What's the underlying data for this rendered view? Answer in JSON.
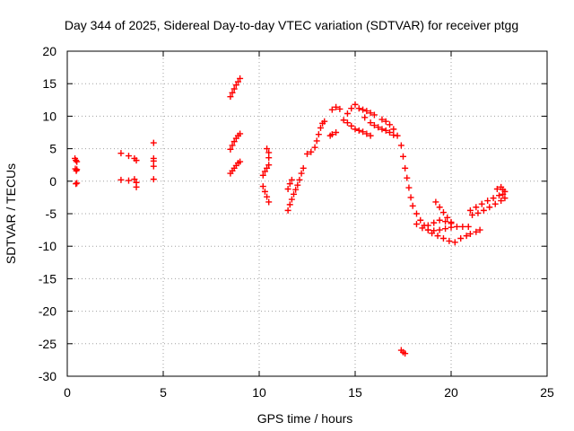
{
  "chart_data": {
    "type": "scatter",
    "title": "Day 344 of 2025, Sidereal Day-to-day VTEC variation (SDTVAR) for receiver ptgg",
    "xlabel": "GPS time / hours",
    "ylabel": "SDTVAR / TECUs",
    "xlim": [
      0,
      25
    ],
    "ylim": [
      -30,
      20
    ],
    "x_ticks": [
      0,
      5,
      10,
      15,
      20,
      25
    ],
    "y_ticks": [
      20,
      15,
      10,
      5,
      0,
      -5,
      -10,
      -15,
      -20,
      -25,
      -30
    ],
    "x_tick_labels": [
      "0",
      "5",
      "10",
      "15",
      "20",
      "25"
    ],
    "y_tick_labels": [
      "20",
      "15",
      "10",
      "5",
      "0",
      "-5",
      "-10",
      "-15",
      "-20",
      "-25",
      "-30"
    ],
    "grid": true,
    "marker": "+",
    "color": "#ff0000",
    "series": [
      {
        "name": "ptgg",
        "points": [
          [
            0.4,
            3.5
          ],
          [
            0.45,
            3.2
          ],
          [
            0.5,
            3.0
          ],
          [
            0.42,
            1.9
          ],
          [
            0.47,
            1.6
          ],
          [
            0.5,
            1.8
          ],
          [
            0.45,
            -0.4
          ],
          [
            0.5,
            -0.3
          ],
          [
            2.8,
            4.3
          ],
          [
            3.2,
            3.9
          ],
          [
            3.5,
            3.5
          ],
          [
            3.6,
            3.2
          ],
          [
            2.8,
            0.2
          ],
          [
            3.2,
            0.1
          ],
          [
            3.5,
            0.3
          ],
          [
            3.6,
            -0.2
          ],
          [
            3.6,
            -0.9
          ],
          [
            4.5,
            5.9
          ],
          [
            4.5,
            3.5
          ],
          [
            4.5,
            3.1
          ],
          [
            4.5,
            2.3
          ],
          [
            4.5,
            0.3
          ],
          [
            8.5,
            13.0
          ],
          [
            8.6,
            13.6
          ],
          [
            8.7,
            14.2
          ],
          [
            8.8,
            14.8
          ],
          [
            8.9,
            15.3
          ],
          [
            9.0,
            15.8
          ],
          [
            8.5,
            4.9
          ],
          [
            8.6,
            5.5
          ],
          [
            8.7,
            6.1
          ],
          [
            8.8,
            6.6
          ],
          [
            8.9,
            7.0
          ],
          [
            9.0,
            7.3
          ],
          [
            8.5,
            1.2
          ],
          [
            8.6,
            1.6
          ],
          [
            8.7,
            2.0
          ],
          [
            8.8,
            2.4
          ],
          [
            8.9,
            2.8
          ],
          [
            9.0,
            3.0
          ],
          [
            10.2,
            -0.8
          ],
          [
            10.3,
            -1.6
          ],
          [
            10.4,
            -2.4
          ],
          [
            10.5,
            -3.2
          ],
          [
            10.2,
            0.9
          ],
          [
            10.3,
            1.5
          ],
          [
            10.4,
            2.0
          ],
          [
            10.5,
            2.5
          ],
          [
            10.4,
            5.0
          ],
          [
            10.5,
            4.4
          ],
          [
            10.5,
            3.6
          ],
          [
            11.5,
            -4.5
          ],
          [
            11.6,
            -3.6
          ],
          [
            11.7,
            -2.8
          ],
          [
            11.8,
            -2.0
          ],
          [
            11.9,
            -1.3
          ],
          [
            12.0,
            -0.6
          ],
          [
            12.1,
            0.2
          ],
          [
            12.2,
            1.2
          ],
          [
            12.3,
            2.0
          ],
          [
            11.6,
            -0.4
          ],
          [
            11.7,
            0.2
          ],
          [
            11.5,
            -1.2
          ],
          [
            12.5,
            4.2
          ],
          [
            12.7,
            4.5
          ],
          [
            12.9,
            5.2
          ],
          [
            13.0,
            6.2
          ],
          [
            13.1,
            7.2
          ],
          [
            13.2,
            8.2
          ],
          [
            13.3,
            8.9
          ],
          [
            13.4,
            9.2
          ],
          [
            13.7,
            7.0
          ],
          [
            13.8,
            7.2
          ],
          [
            14.0,
            7.5
          ],
          [
            13.8,
            11.0
          ],
          [
            14.0,
            11.4
          ],
          [
            14.2,
            11.1
          ],
          [
            14.6,
            10.4
          ],
          [
            14.8,
            11.2
          ],
          [
            15.0,
            11.8
          ],
          [
            15.2,
            11.2
          ],
          [
            15.4,
            11.0
          ],
          [
            15.6,
            10.8
          ],
          [
            15.8,
            10.5
          ],
          [
            16.0,
            10.2
          ],
          [
            14.4,
            9.4
          ],
          [
            14.6,
            9.0
          ],
          [
            14.8,
            8.5
          ],
          [
            15.0,
            8.0
          ],
          [
            15.2,
            7.8
          ],
          [
            15.4,
            7.6
          ],
          [
            15.6,
            7.3
          ],
          [
            15.8,
            7.0
          ],
          [
            15.5,
            9.8
          ],
          [
            15.8,
            9.0
          ],
          [
            16.0,
            8.6
          ],
          [
            16.2,
            8.3
          ],
          [
            16.4,
            8.0
          ],
          [
            16.6,
            7.8
          ],
          [
            16.8,
            7.5
          ],
          [
            17.0,
            7.1
          ],
          [
            16.4,
            9.5
          ],
          [
            16.6,
            9.2
          ],
          [
            16.8,
            8.7
          ],
          [
            17.0,
            8.0
          ],
          [
            17.2,
            7.0
          ],
          [
            17.4,
            5.5
          ],
          [
            17.5,
            3.8
          ],
          [
            17.6,
            2.0
          ],
          [
            17.7,
            0.5
          ],
          [
            17.8,
            -1.0
          ],
          [
            17.9,
            -2.5
          ],
          [
            18.0,
            -3.8
          ],
          [
            18.2,
            -5.0
          ],
          [
            18.4,
            -6.0
          ],
          [
            18.6,
            -6.8
          ],
          [
            18.8,
            -7.5
          ],
          [
            19.0,
            -8.0
          ],
          [
            19.3,
            -8.4
          ],
          [
            19.6,
            -8.8
          ],
          [
            19.9,
            -9.2
          ],
          [
            20.2,
            -9.4
          ],
          [
            18.2,
            -6.6
          ],
          [
            18.5,
            -7.2
          ],
          [
            18.8,
            -7.5
          ],
          [
            19.1,
            -7.6
          ],
          [
            19.4,
            -7.5
          ],
          [
            19.7,
            -7.3
          ],
          [
            20.0,
            -7.1
          ],
          [
            20.3,
            -7.0
          ],
          [
            20.6,
            -7.0
          ],
          [
            20.9,
            -7.0
          ],
          [
            18.8,
            -6.8
          ],
          [
            19.1,
            -6.4
          ],
          [
            19.4,
            -6.0
          ],
          [
            19.7,
            -6.2
          ],
          [
            20.0,
            -6.5
          ],
          [
            19.2,
            -3.2
          ],
          [
            19.4,
            -4.0
          ],
          [
            19.6,
            -4.8
          ],
          [
            19.8,
            -5.6
          ],
          [
            20.0,
            -6.3
          ],
          [
            20.5,
            -8.8
          ],
          [
            20.8,
            -8.4
          ],
          [
            21.0,
            -8.1
          ],
          [
            21.3,
            -7.8
          ],
          [
            21.5,
            -7.5
          ],
          [
            21.0,
            -4.5
          ],
          [
            21.3,
            -4.0
          ],
          [
            21.6,
            -3.5
          ],
          [
            21.9,
            -3.0
          ],
          [
            22.2,
            -2.6
          ],
          [
            22.5,
            -2.2
          ],
          [
            22.7,
            -2.0
          ],
          [
            22.8,
            -1.6
          ],
          [
            21.1,
            -5.2
          ],
          [
            21.4,
            -4.9
          ],
          [
            21.7,
            -4.5
          ],
          [
            22.0,
            -4.0
          ],
          [
            22.3,
            -3.5
          ],
          [
            22.6,
            -3.0
          ],
          [
            22.8,
            -2.6
          ],
          [
            22.4,
            -1.2
          ],
          [
            22.6,
            -0.9
          ],
          [
            22.7,
            -1.3
          ],
          [
            17.4,
            -26.0
          ],
          [
            17.5,
            -26.3
          ],
          [
            17.6,
            -26.5
          ]
        ]
      }
    ]
  }
}
